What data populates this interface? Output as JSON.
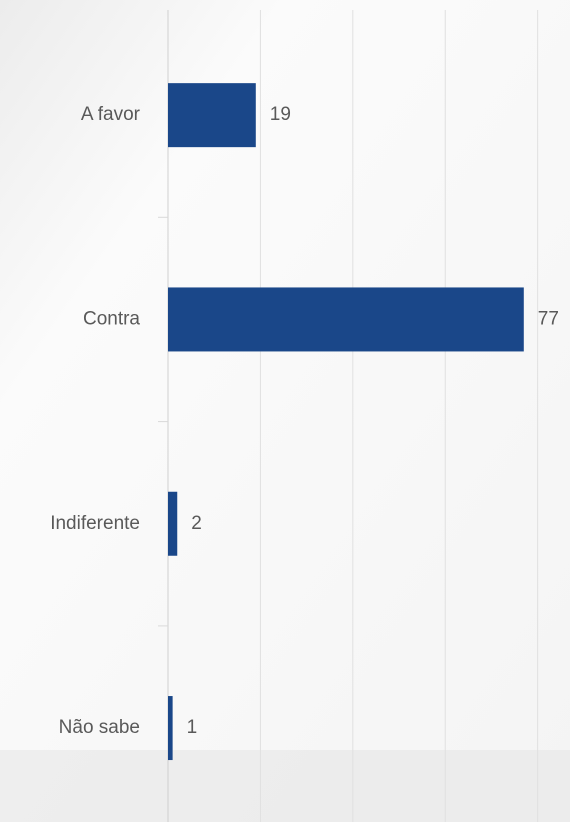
{
  "chart_data": {
    "type": "bar",
    "orientation": "horizontal",
    "categories": [
      "A favor",
      "Contra",
      "Indiferente",
      "Não sabe"
    ],
    "values": [
      19,
      77,
      2,
      1
    ],
    "color": "#1a4789",
    "xlim": [
      0,
      87
    ],
    "xticks": [
      0,
      20,
      40,
      60,
      80
    ],
    "grid": true
  }
}
